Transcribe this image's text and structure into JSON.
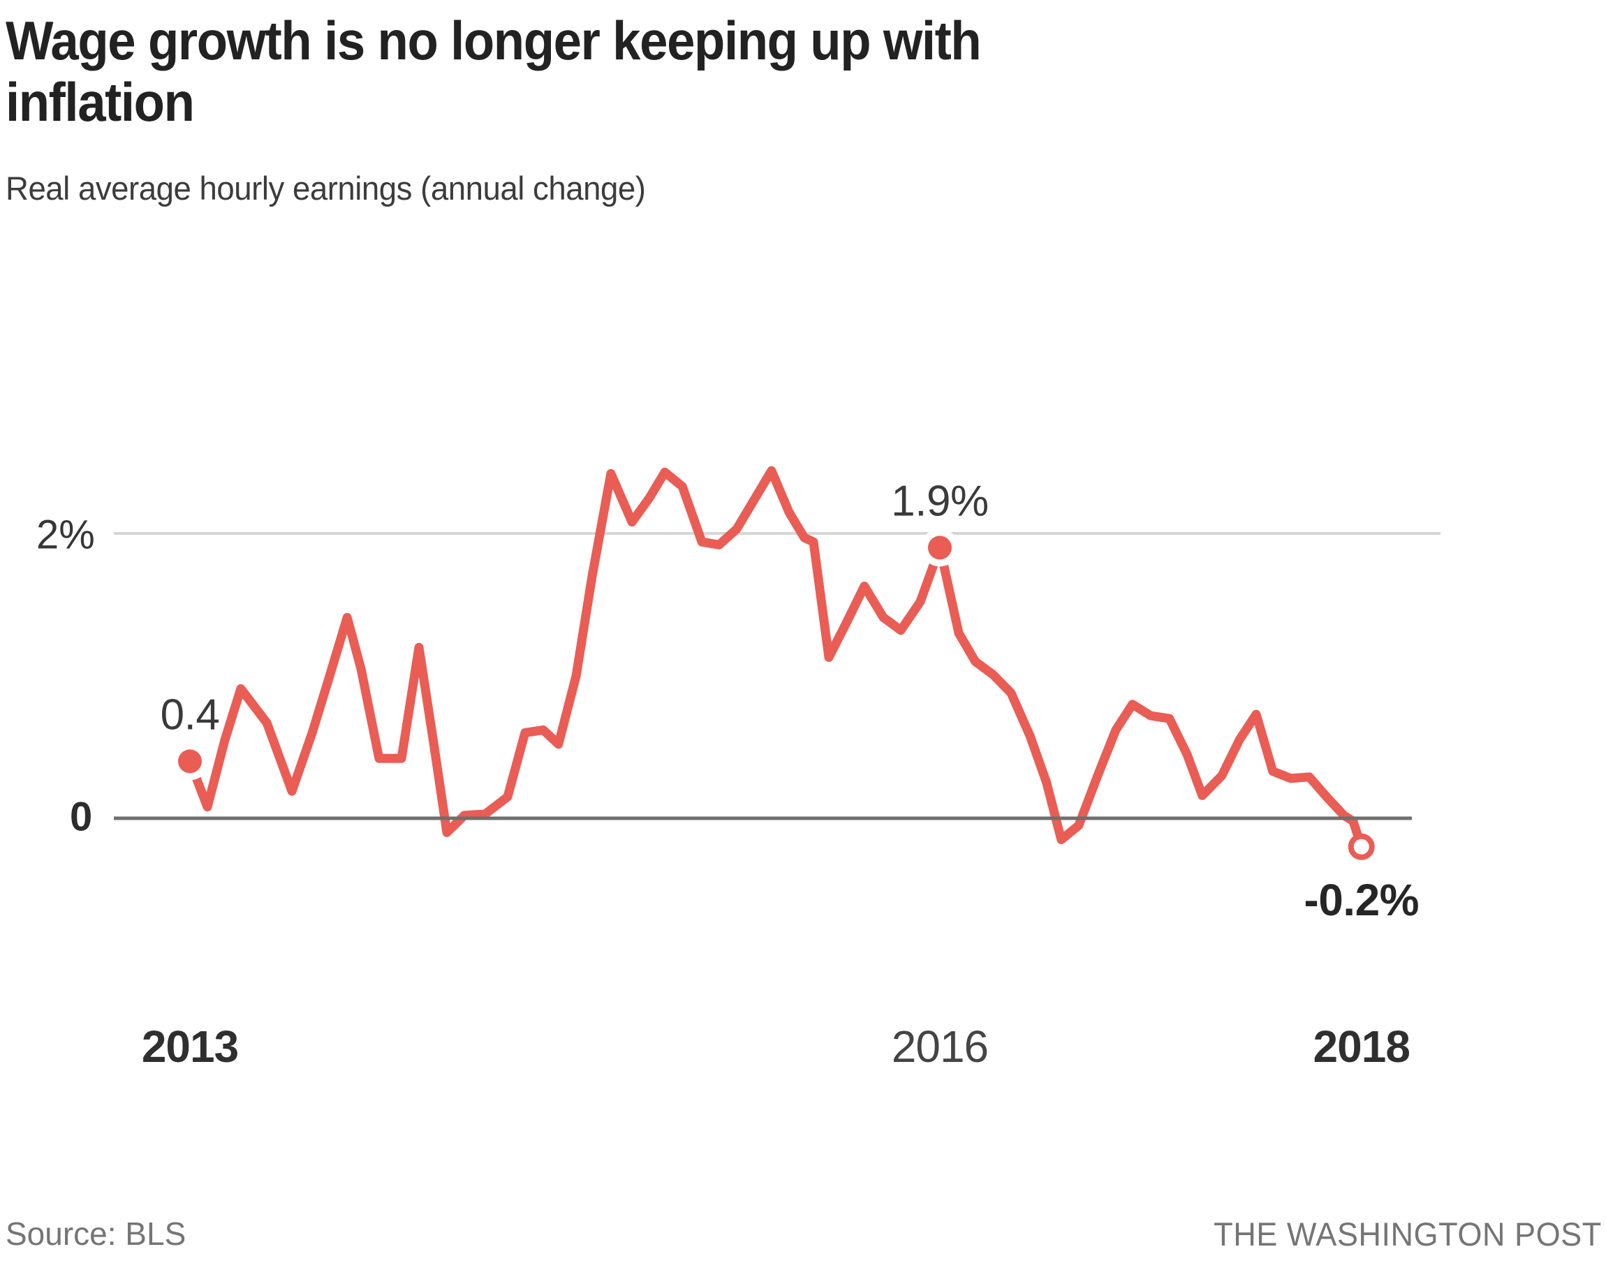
{
  "title": "Wage growth is no longer keeping up with inflation",
  "subtitle": "Real average hourly earnings (annual change)",
  "footer": {
    "source": "Source: BLS",
    "credit": "THE WASHINGTON POST"
  },
  "colors": {
    "line": "#e95d55",
    "gridline": "#d6d6d4",
    "zeroline": "#6f6f6d",
    "annotation_text": "#3a3a3a",
    "background": "#ffffff"
  },
  "chart_data": {
    "type": "line",
    "title": "Wage growth is no longer keeping up with inflation",
    "subtitle": "Real average hourly earnings (annual change)",
    "grid": "single horizontal gridline at 2% plus zero baseline",
    "legend": "none",
    "x_axis": {
      "unit": "year (monthly points)",
      "range": [
        2013.0,
        2018.5
      ],
      "ticks": [
        {
          "label": "2013",
          "year": 2013.0,
          "bold": true
        },
        {
          "label": "2016",
          "year": 2016.52,
          "bold": false
        },
        {
          "label": "2018",
          "year": 2018.499,
          "bold": true
        }
      ]
    },
    "y_axis": {
      "unit": "percent",
      "range": [
        -0.55,
        2.75
      ],
      "gridlines": [
        {
          "label": "2%",
          "value": 2,
          "style": "light"
        },
        {
          "label": "0",
          "value": 0,
          "style": "dark"
        }
      ]
    },
    "series": [
      {
        "name": "Real average hourly earnings, annual change (%)",
        "points": [
          [
            2013.0,
            0.4
          ],
          [
            2013.082,
            0.08
          ],
          [
            2013.164,
            0.55
          ],
          [
            2013.239,
            0.91
          ],
          [
            2013.361,
            0.67
          ],
          [
            2013.479,
            0.19
          ],
          [
            2013.574,
            0.6
          ],
          [
            2013.656,
            1.0
          ],
          [
            2013.738,
            1.41
          ],
          [
            2013.803,
            1.05
          ],
          [
            2013.888,
            0.42
          ],
          [
            2013.993,
            0.42
          ],
          [
            2014.075,
            1.2
          ],
          [
            2014.147,
            0.5
          ],
          [
            2014.206,
            -0.1
          ],
          [
            2014.288,
            0.02
          ],
          [
            2014.386,
            0.03
          ],
          [
            2014.491,
            0.15
          ],
          [
            2014.573,
            0.6
          ],
          [
            2014.658,
            0.62
          ],
          [
            2014.73,
            0.52
          ],
          [
            2014.813,
            1.0
          ],
          [
            2014.888,
            1.7
          ],
          [
            2014.976,
            2.42
          ],
          [
            2015.075,
            2.08
          ],
          [
            2015.157,
            2.25
          ],
          [
            2015.229,
            2.43
          ],
          [
            2015.311,
            2.33
          ],
          [
            2015.403,
            1.94
          ],
          [
            2015.484,
            1.92
          ],
          [
            2015.566,
            2.03
          ],
          [
            2015.642,
            2.22
          ],
          [
            2015.73,
            2.44
          ],
          [
            2015.812,
            2.15
          ],
          [
            2015.884,
            1.97
          ],
          [
            2015.927,
            1.94
          ],
          [
            2015.999,
            1.13
          ],
          [
            2016.084,
            1.38
          ],
          [
            2016.166,
            1.63
          ],
          [
            2016.255,
            1.41
          ],
          [
            2016.337,
            1.32
          ],
          [
            2016.428,
            1.52
          ],
          [
            2016.52,
            1.9
          ],
          [
            2016.609,
            1.3
          ],
          [
            2016.687,
            1.1
          ],
          [
            2016.769,
            1.01
          ],
          [
            2016.854,
            0.88
          ],
          [
            2016.943,
            0.58
          ],
          [
            2017.021,
            0.25
          ],
          [
            2017.09,
            -0.15
          ],
          [
            2017.172,
            -0.05
          ],
          [
            2017.261,
            0.3
          ],
          [
            2017.346,
            0.62
          ],
          [
            2017.424,
            0.8
          ],
          [
            2017.51,
            0.72
          ],
          [
            2017.598,
            0.7
          ],
          [
            2017.68,
            0.45
          ],
          [
            2017.752,
            0.16
          ],
          [
            2017.844,
            0.3
          ],
          [
            2017.926,
            0.55
          ],
          [
            2018.005,
            0.73
          ],
          [
            2018.083,
            0.33
          ],
          [
            2018.168,
            0.28
          ],
          [
            2018.254,
            0.29
          ],
          [
            2018.336,
            0.15
          ],
          [
            2018.417,
            0.02
          ],
          [
            2018.46,
            -0.02
          ],
          [
            2018.499,
            -0.2
          ]
        ]
      }
    ],
    "annotations": [
      {
        "label": "0.4",
        "year": 2013.0,
        "value": 0.4,
        "marker": "filled-dot",
        "label_position": "above"
      },
      {
        "label": "1.9%",
        "year": 2016.52,
        "value": 1.9,
        "marker": "filled-dot",
        "label_position": "above"
      },
      {
        "label": "-0.2%",
        "year": 2018.499,
        "value": -0.2,
        "marker": "open-dot",
        "label_position": "below"
      }
    ]
  }
}
